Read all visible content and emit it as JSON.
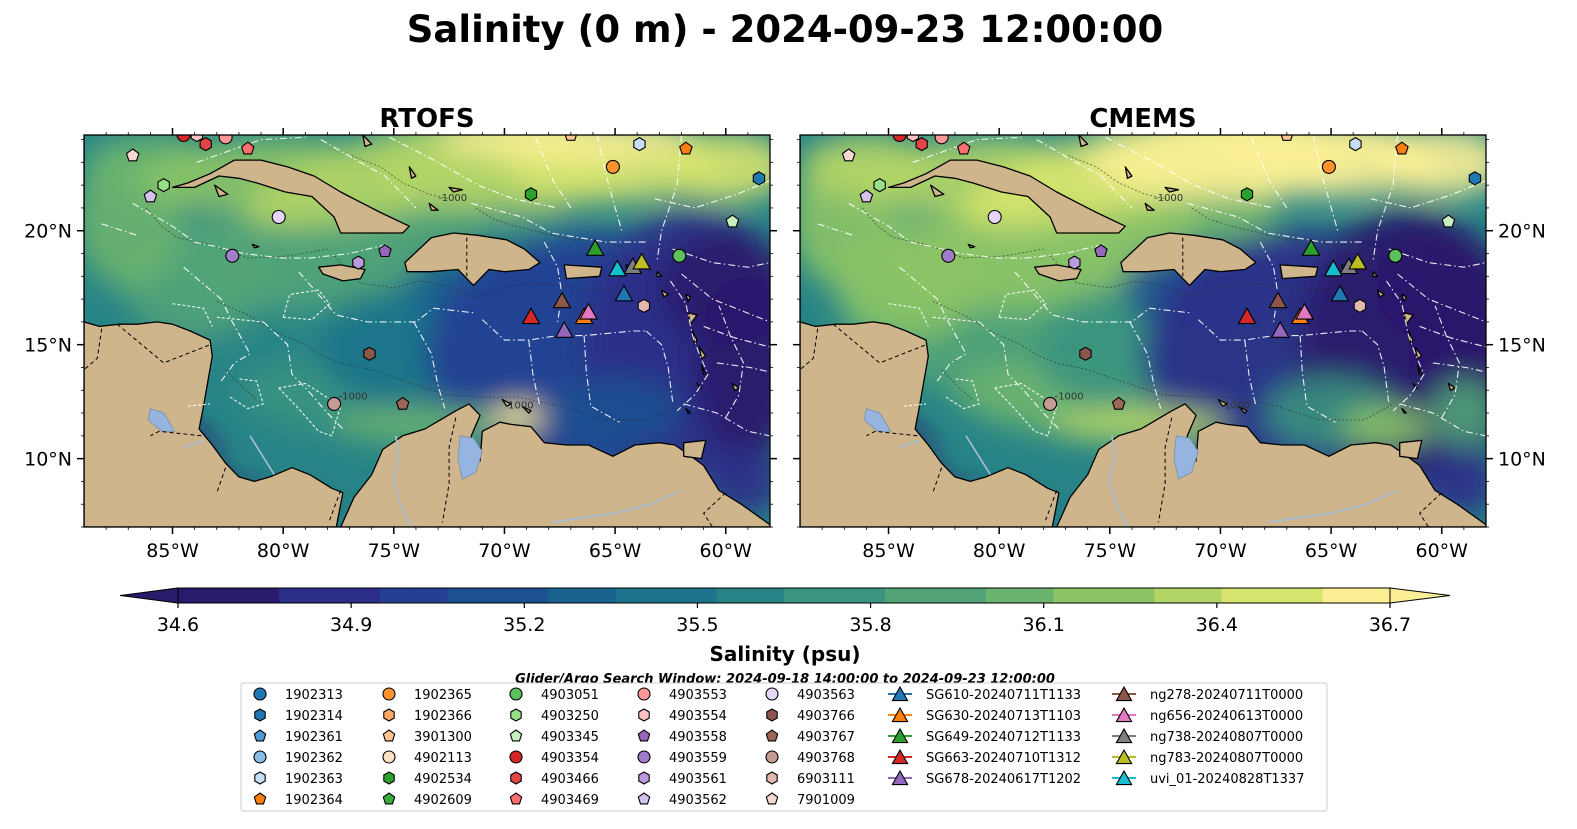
{
  "figure": {
    "title": "Salinity (0 m) - 2024-09-23 12:00:00",
    "search_window": "Glider/Argo Search Window: 2024-09-18 14:00:00 to 2024-09-23 12:00:00"
  },
  "colors": {
    "land": "#cfb58c",
    "lake": "#96b4e0",
    "river": "#a7bdd6",
    "coast": "#000000",
    "eez": "#ffffff",
    "colormap": [
      "#2a1a6b",
      "#2b2d88",
      "#243f94",
      "#1c5191",
      "#1a628e",
      "#1d738b",
      "#278486",
      "#3a9480",
      "#52a478",
      "#6bb46f",
      "#8cc466",
      "#b2d566",
      "#d7e46e",
      "#fbef95"
    ]
  },
  "panels": [
    {
      "id": "rtofs",
      "title": "RTOFS",
      "variant": "rtofs"
    },
    {
      "id": "cmems",
      "title": "CMEMS",
      "variant": "cmems"
    }
  ],
  "axes": {
    "lon_range": [
      -89,
      -58
    ],
    "lat_range": [
      7,
      24.2
    ],
    "lon_ticks": [
      {
        "value": -85,
        "label": "85°W"
      },
      {
        "value": -80,
        "label": "80°W"
      },
      {
        "value": -75,
        "label": "75°W"
      },
      {
        "value": -70,
        "label": "70°W"
      },
      {
        "value": -65,
        "label": "65°W"
      },
      {
        "value": -60,
        "label": "60°W"
      }
    ],
    "lat_ticks": [
      {
        "value": 20,
        "label": "20°N"
      },
      {
        "value": 15,
        "label": "15°N"
      },
      {
        "value": 10,
        "label": "10°N"
      }
    ]
  },
  "colorbar": {
    "label": "Salinity (psu)",
    "min": 34.6,
    "max": 36.7,
    "ticks": [
      "34.6",
      "34.9",
      "35.2",
      "35.5",
      "35.8",
      "36.1",
      "36.4",
      "36.7"
    ],
    "extend": "both"
  },
  "contour_labels": [
    {
      "lon": -77.5,
      "lat": 12.6,
      "text": "-1000"
    },
    {
      "lon": -70.0,
      "lat": 12.2,
      "text": "-1000"
    },
    {
      "lon": -73.0,
      "lat": 21.3,
      "text": "-1000"
    }
  ],
  "argo": [
    {
      "id": "1902313",
      "marker": "circle",
      "color": "#1f77b4",
      "lon": null,
      "lat": null
    },
    {
      "id": "1902314",
      "marker": "hexagon",
      "color": "#1f77b4",
      "lon": -58.5,
      "lat": 22.3
    },
    {
      "id": "1902361",
      "marker": "pentagon",
      "color": "#4f9bd6",
      "lon": null,
      "lat": null
    },
    {
      "id": "1902362",
      "marker": "circle",
      "color": "#8dbde6",
      "lon": null,
      "lat": null
    },
    {
      "id": "1902363",
      "marker": "hexagon",
      "color": "#c6ddf2",
      "lon": -63.9,
      "lat": 23.8
    },
    {
      "id": "1902364",
      "marker": "pentagon",
      "color": "#ff7f0e",
      "lon": -61.8,
      "lat": 23.6
    },
    {
      "id": "1902365",
      "marker": "circle",
      "color": "#ff9330",
      "lon": -65.1,
      "lat": 22.8
    },
    {
      "id": "1902366",
      "marker": "hexagon",
      "color": "#ffaa60",
      "lon": null,
      "lat": null
    },
    {
      "id": "3901300",
      "marker": "pentagon",
      "color": "#ffc48f",
      "lon": -67.0,
      "lat": 24.2
    },
    {
      "id": "4902113",
      "marker": "circle",
      "color": "#ffe2c4",
      "lon": null,
      "lat": null
    },
    {
      "id": "4902534",
      "marker": "hexagon",
      "color": "#2ca02c",
      "lon": -68.8,
      "lat": 21.6
    },
    {
      "id": "4902609",
      "marker": "pentagon",
      "color": "#3aaa3a",
      "lon": null,
      "lat": null
    },
    {
      "id": "4903051",
      "marker": "circle",
      "color": "#5cc05c",
      "lon": -62.1,
      "lat": 18.9
    },
    {
      "id": "4903250",
      "marker": "hexagon",
      "color": "#98df8a",
      "lon": -85.4,
      "lat": 22.0
    },
    {
      "id": "4903345",
      "marker": "pentagon",
      "color": "#c7efc0",
      "lon": -59.7,
      "lat": 20.4
    },
    {
      "id": "4903354",
      "marker": "circle",
      "color": "#d62728",
      "lon": -84.5,
      "lat": 24.2
    },
    {
      "id": "4903466",
      "marker": "hexagon",
      "color": "#e04646",
      "lon": -83.5,
      "lat": 23.8
    },
    {
      "id": "4903469",
      "marker": "pentagon",
      "color": "#ff6f6f",
      "lon": -81.6,
      "lat": 23.6
    },
    {
      "id": "4903553",
      "marker": "circle",
      "color": "#ff9896",
      "lon": -82.6,
      "lat": 24.1
    },
    {
      "id": "4903554",
      "marker": "hexagon",
      "color": "#ffc3c1",
      "lon": -83.9,
      "lat": 24.2
    },
    {
      "id": "4903558",
      "marker": "pentagon",
      "color": "#9467bd",
      "lon": -75.4,
      "lat": 19.1
    },
    {
      "id": "4903559",
      "marker": "circle",
      "color": "#a07ccb",
      "lon": -82.3,
      "lat": 18.9
    },
    {
      "id": "4903561",
      "marker": "hexagon",
      "color": "#b89add",
      "lon": -76.6,
      "lat": 18.6
    },
    {
      "id": "4903562",
      "marker": "pentagon",
      "color": "#d5c2ee",
      "lon": -86.0,
      "lat": 21.5
    },
    {
      "id": "4903563",
      "marker": "circle",
      "color": "#e5d5f7",
      "lon": -80.2,
      "lat": 20.6
    },
    {
      "id": "4903766",
      "marker": "hexagon",
      "color": "#8c564b",
      "lon": -76.1,
      "lat": 14.6
    },
    {
      "id": "4903767",
      "marker": "pentagon",
      "color": "#9c6658",
      "lon": -74.6,
      "lat": 12.4
    },
    {
      "id": "4903768",
      "marker": "circle",
      "color": "#c49c94",
      "lon": -77.7,
      "lat": 12.4
    },
    {
      "id": "6903111",
      "marker": "hexagon",
      "color": "#e2b8ae",
      "lon": -63.7,
      "lat": 16.7
    },
    {
      "id": "7901009",
      "marker": "pentagon",
      "color": "#f5d9d2",
      "lon": -86.8,
      "lat": 23.3
    }
  ],
  "gliders": [
    {
      "id": "SG610-20240711T1133",
      "color": "#1f77b4",
      "lon": -64.6,
      "lat": 17.2
    },
    {
      "id": "SG630-20240713T1103",
      "color": "#ff7f0e",
      "lon": -66.4,
      "lat": 16.2
    },
    {
      "id": "SG649-20240712T1133",
      "color": "#2ca02c",
      "lon": -65.9,
      "lat": 19.2
    },
    {
      "id": "SG663-20240710T1312",
      "color": "#d62728",
      "lon": -68.8,
      "lat": 16.2
    },
    {
      "id": "SG678-20240617T1202",
      "color": "#9467bd",
      "lon": -67.3,
      "lat": 15.6
    },
    {
      "id": "ng278-20240711T0000",
      "color": "#8c564b",
      "lon": -67.4,
      "lat": 16.9
    },
    {
      "id": "ng656-20240613T0000",
      "color": "#e377c2",
      "lon": -66.2,
      "lat": 16.4
    },
    {
      "id": "ng738-20240807T0000",
      "color": "#7f7f7f",
      "lon": -64.2,
      "lat": 18.4
    },
    {
      "id": "ng783-20240807T0000",
      "color": "#bcbd22",
      "lon": -63.8,
      "lat": 18.6
    },
    {
      "id": "uvi_01-20240828T1337",
      "color": "#17becf",
      "lon": -64.9,
      "lat": 18.3
    }
  ]
}
